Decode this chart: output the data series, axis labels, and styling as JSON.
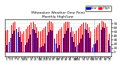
{
  "title": "Milwaukee Weather Dew Point",
  "subtitle": "Monthly High/Low",
  "high_values": [
    52,
    55,
    58,
    62,
    67,
    72,
    74,
    73,
    68,
    60,
    50,
    44,
    50,
    53,
    57,
    62,
    67,
    72,
    75,
    74,
    69,
    61,
    51,
    43,
    51,
    54,
    58,
    63,
    68,
    73,
    76,
    75,
    70,
    62,
    52,
    44,
    53,
    56,
    60,
    65,
    70,
    74,
    75,
    74,
    69,
    61,
    51,
    44,
    52,
    55,
    59,
    64,
    69,
    73,
    75,
    73,
    68,
    60,
    50,
    43,
    54,
    57,
    61,
    66,
    71,
    75,
    76,
    75,
    70,
    62,
    52,
    45
  ],
  "low_values": [
    18,
    20,
    26,
    34,
    44,
    52,
    58,
    56,
    48,
    36,
    26,
    14,
    16,
    18,
    24,
    32,
    42,
    50,
    56,
    54,
    46,
    34,
    24,
    12,
    14,
    16,
    22,
    30,
    40,
    48,
    54,
    52,
    44,
    32,
    22,
    10,
    18,
    20,
    26,
    34,
    44,
    52,
    58,
    56,
    48,
    36,
    26,
    14,
    16,
    18,
    24,
    32,
    42,
    50,
    56,
    54,
    46,
    34,
    24,
    12,
    20,
    22,
    28,
    36,
    46,
    54,
    60,
    58,
    50,
    38,
    28,
    16
  ],
  "dotted_x": [
    60.5
  ],
  "bar_high_color": "#ff0000",
  "bar_low_color": "#0000cc",
  "background_color": "#ffffff",
  "ylim": [
    -10,
    80
  ],
  "ytick_values": [
    0,
    10,
    20,
    30,
    40,
    50,
    60,
    70
  ],
  "num_months": 72,
  "grid_color": "#cccccc",
  "legend_labels": [
    "Low",
    "High"
  ],
  "legend_colors": [
    "#0000cc",
    "#ff0000"
  ]
}
